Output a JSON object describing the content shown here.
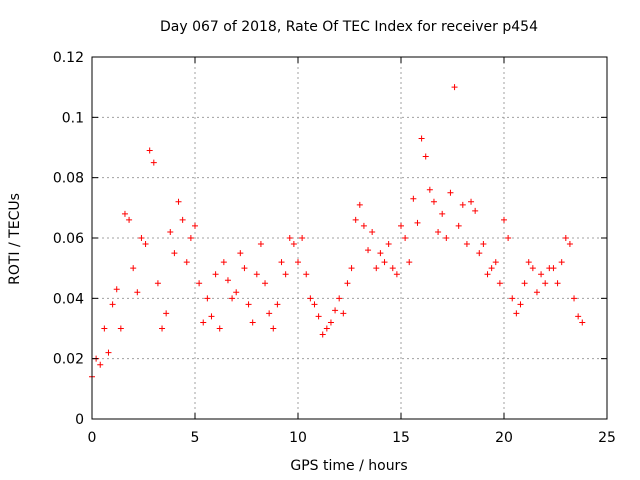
{
  "chart_data": {
    "type": "scatter",
    "title": "Day 067 of 2018, Rate Of TEC Index for receiver p454",
    "xlabel": "GPS time / hours",
    "ylabel": "ROTI / TECUs",
    "xlim": [
      0,
      25
    ],
    "ylim": [
      0,
      0.12
    ],
    "xticks": [
      0,
      5,
      10,
      15,
      20,
      25
    ],
    "xtick_labels": [
      "0",
      "5",
      "10",
      "15",
      "20",
      "25"
    ],
    "yticks": [
      0,
      0.02,
      0.04,
      0.06,
      0.08,
      0.1,
      0.12
    ],
    "ytick_labels": [
      "0",
      "0.02",
      "0.04",
      "0.06",
      "0.08",
      "0.1",
      "0.12"
    ],
    "grid": true,
    "marker": "plus",
    "series": [
      {
        "name": "ROTI",
        "color": "#ff0000",
        "x": [
          0.0,
          0.2,
          0.4,
          0.6,
          0.8,
          1.0,
          1.2,
          1.4,
          1.6,
          1.8,
          2.0,
          2.2,
          2.4,
          2.6,
          2.8,
          3.0,
          3.2,
          3.4,
          3.6,
          3.8,
          4.0,
          4.2,
          4.4,
          4.6,
          4.8,
          5.0,
          5.2,
          5.4,
          5.6,
          5.8,
          6.0,
          6.2,
          6.4,
          6.6,
          6.8,
          7.0,
          7.2,
          7.4,
          7.6,
          7.8,
          8.0,
          8.2,
          8.4,
          8.6,
          8.8,
          9.0,
          9.2,
          9.4,
          9.6,
          9.8,
          10.0,
          10.2,
          10.4,
          10.6,
          10.8,
          11.0,
          11.2,
          11.4,
          11.6,
          11.8,
          12.0,
          12.2,
          12.4,
          12.6,
          12.8,
          13.0,
          13.2,
          13.4,
          13.6,
          13.8,
          14.0,
          14.2,
          14.4,
          14.6,
          14.8,
          15.0,
          15.2,
          15.4,
          15.6,
          15.8,
          16.0,
          16.2,
          16.4,
          16.6,
          16.8,
          17.0,
          17.2,
          17.4,
          17.6,
          17.8,
          18.0,
          18.2,
          18.4,
          18.6,
          18.8,
          19.0,
          19.2,
          19.4,
          19.6,
          19.8,
          20.0,
          20.2,
          20.4,
          20.6,
          20.8,
          21.0,
          21.2,
          21.4,
          21.6,
          21.8,
          22.0,
          22.2,
          22.4,
          22.6,
          22.8,
          23.0,
          23.2,
          23.4,
          23.6,
          23.8
        ],
        "y": [
          0.014,
          0.02,
          0.018,
          0.03,
          0.022,
          0.038,
          0.043,
          0.03,
          0.068,
          0.066,
          0.05,
          0.042,
          0.06,
          0.058,
          0.089,
          0.085,
          0.045,
          0.03,
          0.035,
          0.062,
          0.055,
          0.072,
          0.066,
          0.052,
          0.06,
          0.064,
          0.045,
          0.032,
          0.04,
          0.034,
          0.048,
          0.03,
          0.052,
          0.046,
          0.04,
          0.042,
          0.055,
          0.05,
          0.038,
          0.032,
          0.048,
          0.058,
          0.045,
          0.035,
          0.03,
          0.038,
          0.052,
          0.048,
          0.06,
          0.058,
          0.052,
          0.06,
          0.048,
          0.04,
          0.038,
          0.034,
          0.028,
          0.03,
          0.032,
          0.036,
          0.04,
          0.035,
          0.045,
          0.05,
          0.066,
          0.071,
          0.064,
          0.056,
          0.062,
          0.05,
          0.055,
          0.052,
          0.058,
          0.05,
          0.048,
          0.064,
          0.06,
          0.052,
          0.073,
          0.065,
          0.093,
          0.087,
          0.076,
          0.072,
          0.062,
          0.068,
          0.06,
          0.075,
          0.11,
          0.064,
          0.071,
          0.058,
          0.072,
          0.069,
          0.055,
          0.058,
          0.048,
          0.05,
          0.052,
          0.045,
          0.066,
          0.06,
          0.04,
          0.035,
          0.038,
          0.045,
          0.052,
          0.05,
          0.042,
          0.048,
          0.045,
          0.05,
          0.05,
          0.045,
          0.052,
          0.06,
          0.058,
          0.04,
          0.034,
          0.032
        ]
      }
    ]
  }
}
